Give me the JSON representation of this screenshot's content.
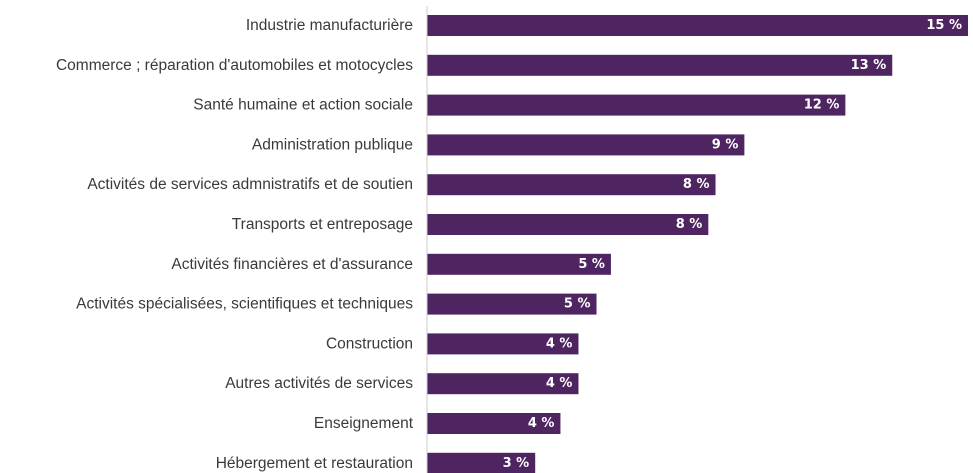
{
  "chart_data": {
    "type": "bar",
    "orientation": "horizontal",
    "categories": [
      "Industrie manufacturière",
      "Commerce ; réparation d'automobiles et motocycles",
      "Santé humaine et action sociale",
      "Administration publique",
      "Activités de services admnistratifs et de soutien",
      "Transports et entreposage",
      "Activités financières et d'assurance",
      "Activités spécialisées, scientifiques et techniques",
      "Construction",
      "Autres activités de services",
      "Enseignement",
      "Hébergement et restauration"
    ],
    "values": [
      15,
      13,
      12,
      9,
      8,
      8,
      5,
      5,
      4,
      4,
      4,
      3
    ],
    "precise_values": [
      15.0,
      12.9,
      11.6,
      8.8,
      8.0,
      7.8,
      5.1,
      4.7,
      4.2,
      4.2,
      3.7,
      3.0
    ],
    "value_labels": [
      "15 %",
      "13 %",
      "12 %",
      "9 %",
      "8 %",
      "8 %",
      "5 %",
      "5 %",
      "4 %",
      "4 %",
      "4 %",
      "3 %"
    ],
    "title": "",
    "xlabel": "",
    "ylabel": "",
    "xlim": [
      0,
      15
    ],
    "grid": false,
    "legend": "none",
    "bar_color": "#4f2561",
    "label_color": "#ffffff",
    "axis_color": "#cccccc"
  }
}
